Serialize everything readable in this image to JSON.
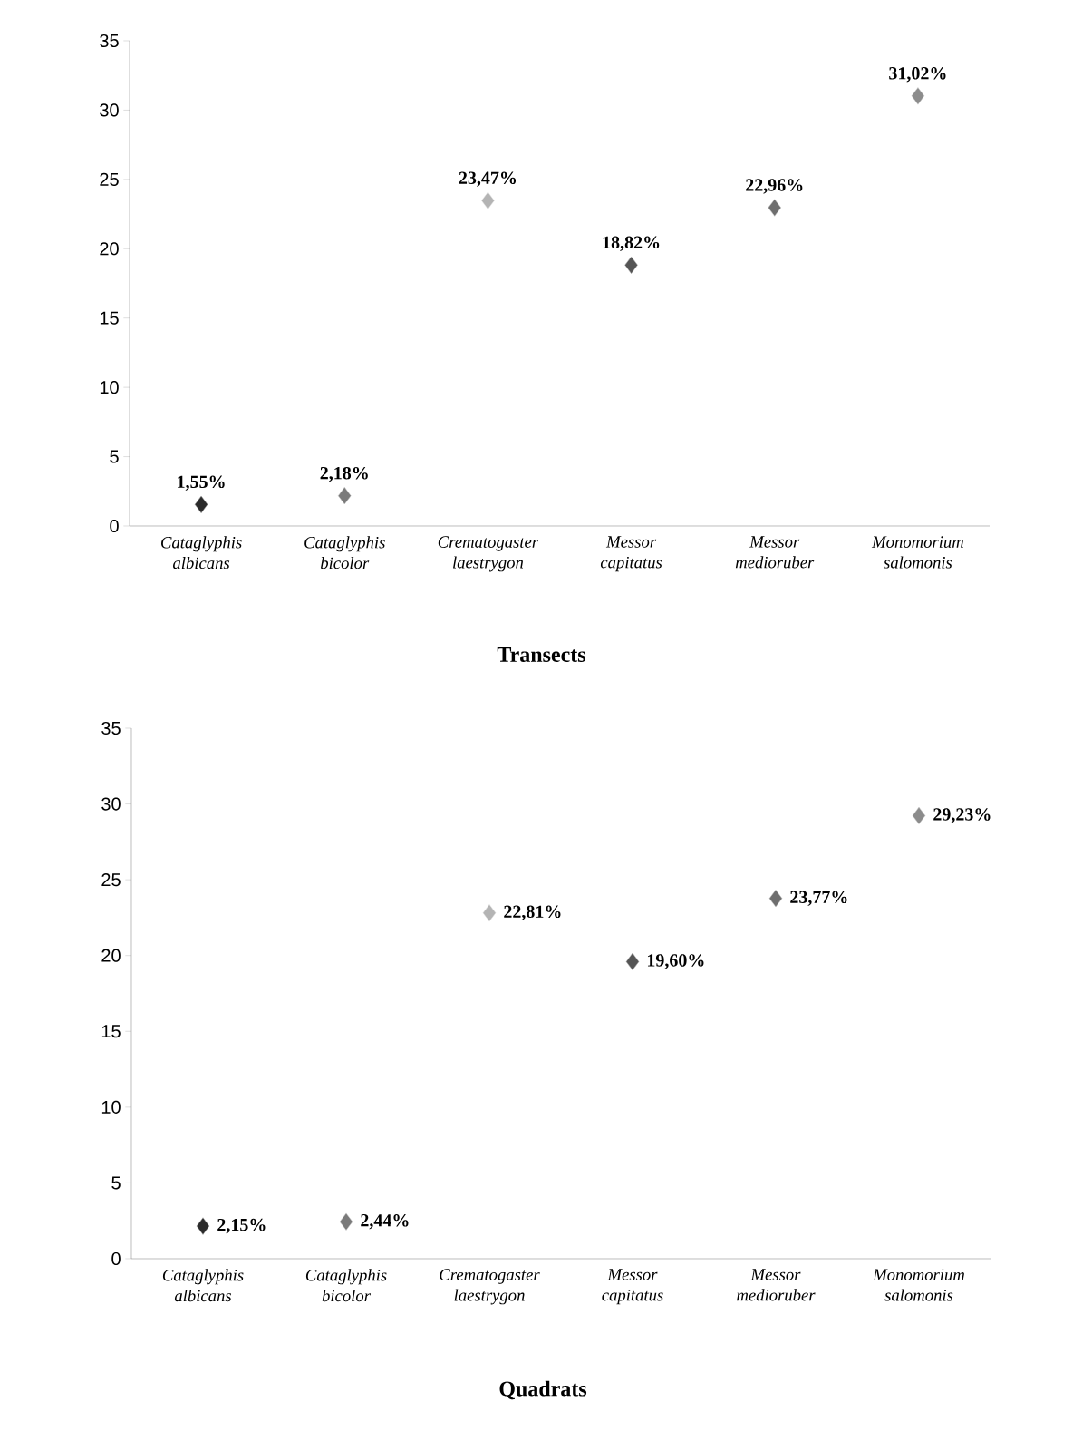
{
  "chart_data": [
    {
      "type": "scatter",
      "title": "Transects",
      "categories": [
        "Cataglyphis albicans",
        "Cataglyphis bicolor",
        "Crematogaster laestrygon",
        "Messor capitatus",
        "Messor medioruber",
        "Monomorium salomonis"
      ],
      "values": [
        1.55,
        2.18,
        23.47,
        18.82,
        22.96,
        31.02
      ],
      "colors": [
        "#2b2b2b",
        "#7a7a7a",
        "#b4b4b4",
        "#555555",
        "#6e6e6e",
        "#8c8c8c"
      ],
      "value_labels": [
        "1,55%",
        "2,18%",
        "23,47%",
        "18,82%",
        "22,96%",
        "31,02%"
      ],
      "ylim": [
        0,
        35
      ],
      "yticks": [
        0,
        5,
        10,
        15,
        20,
        25,
        30,
        35
      ],
      "marker": "diamond"
    },
    {
      "type": "scatter",
      "title": "Quadrats",
      "categories": [
        "Cataglyphis albicans",
        "Cataglyphis bicolor",
        "Crematogaster laestrygon",
        "Messor capitatus",
        "Messor medioruber",
        "Monomorium salomonis"
      ],
      "values": [
        2.15,
        2.44,
        22.81,
        19.6,
        23.77,
        29.23
      ],
      "colors": [
        "#2b2b2b",
        "#7a7a7a",
        "#b4b4b4",
        "#555555",
        "#6e6e6e",
        "#8c8c8c"
      ],
      "value_labels": [
        "2,15%",
        "2,44%",
        "22,81%",
        "19,60%",
        "23,77%",
        "29,23%"
      ],
      "ylim": [
        0,
        35
      ],
      "yticks": [
        0,
        5,
        10,
        15,
        20,
        25,
        30,
        35
      ],
      "marker": "diamond"
    }
  ]
}
